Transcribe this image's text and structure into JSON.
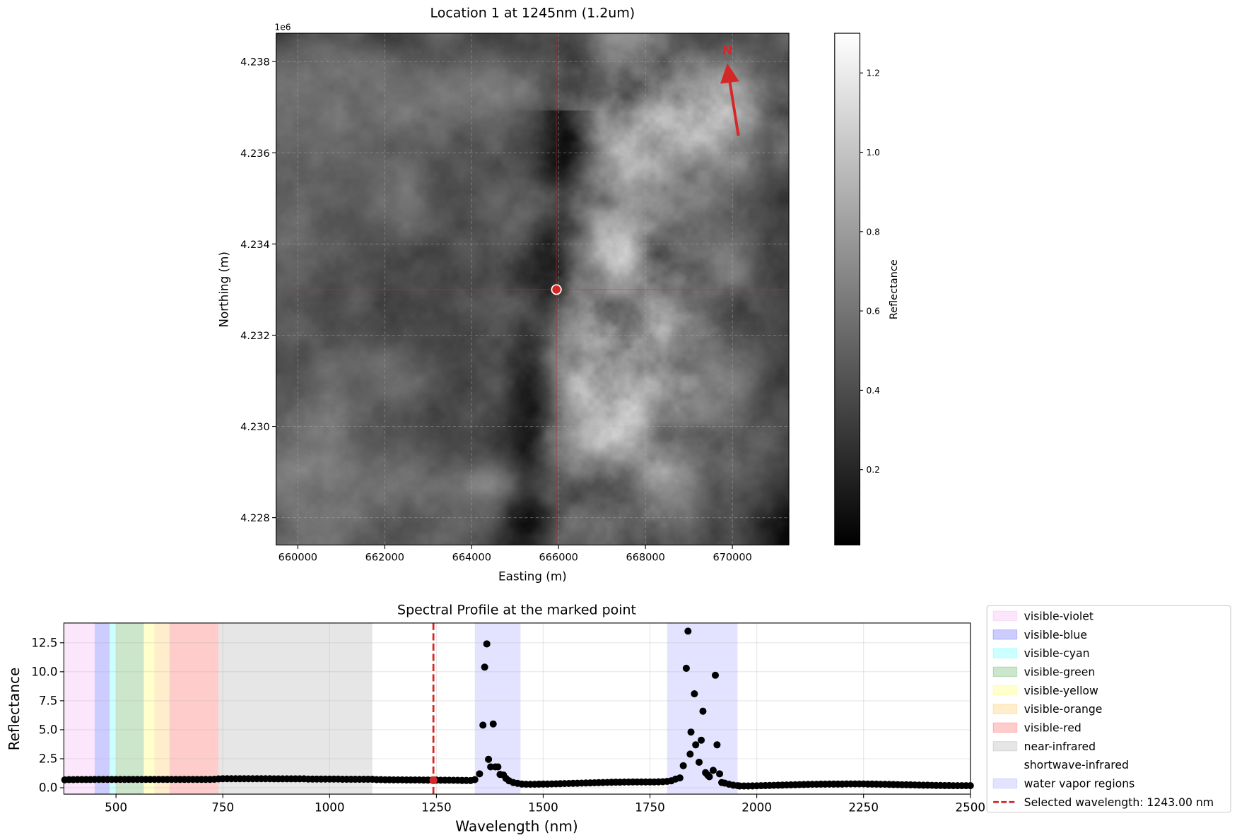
{
  "chart_data": [
    {
      "type": "heatmap",
      "title": "Location 1 at 1245nm (1.2um)",
      "xlabel": "Easting (m)",
      "ylabel": "Northing (m)",
      "y_offset_label": "1e6",
      "xlim": [
        659500,
        671300
      ],
      "ylim": [
        4227400,
        4238620
      ],
      "xticks": [
        660000,
        662000,
        664000,
        666000,
        668000,
        670000
      ],
      "xtick_labels": [
        "660000",
        "662000",
        "664000",
        "666000",
        "668000",
        "670000"
      ],
      "yticks": [
        4228000,
        4230000,
        4232000,
        4234000,
        4236000,
        4238000
      ],
      "ytick_labels": [
        "4.228",
        "4.230",
        "4.232",
        "4.234",
        "4.236",
        "4.238"
      ],
      "grid": true,
      "colormap": "gray",
      "colorbar": {
        "label": "Reflectance",
        "range": [
          0.01,
          1.3
        ],
        "ticks": [
          0.2,
          0.4,
          0.6,
          0.8,
          1.0,
          1.2
        ],
        "tick_labels": [
          "0.2",
          "0.4",
          "0.6",
          "0.8",
          "1.0",
          "1.2"
        ]
      },
      "marked_point": {
        "easting": 665950,
        "northing": 4233000,
        "color": "#d62728"
      },
      "north_arrow": {
        "label": "N",
        "color": "#d62728"
      }
    },
    {
      "type": "scatter",
      "title": "Spectral Profile at the marked point",
      "xlabel": "Wavelength (nm)",
      "ylabel": "Reflectance",
      "xlim": [
        378,
        2500
      ],
      "ylim": [
        -0.55,
        14.2
      ],
      "xticks": [
        500,
        750,
        1000,
        1250,
        1500,
        1750,
        2000,
        2250,
        2500
      ],
      "xtick_labels": [
        "500",
        "750",
        "1000",
        "1250",
        "1500",
        "1750",
        "2000",
        "2250",
        "2500"
      ],
      "yticks": [
        0,
        2.5,
        5,
        7.5,
        10,
        12.5
      ],
      "ytick_labels": [
        "0.0",
        "2.5",
        "5.0",
        "7.5",
        "10.0",
        "12.5"
      ],
      "grid": true,
      "legend_placement": "outside-right",
      "bands": [
        {
          "name": "visible-violet",
          "range": [
            380,
            450
          ],
          "color": "#ee82ee",
          "alpha": 0.2
        },
        {
          "name": "visible-blue",
          "range": [
            450,
            485
          ],
          "color": "#0000ff",
          "alpha": 0.2
        },
        {
          "name": "visible-cyan",
          "range": [
            485,
            500
          ],
          "color": "#00ffff",
          "alpha": 0.2
        },
        {
          "name": "visible-green",
          "range": [
            500,
            565
          ],
          "color": "#008000",
          "alpha": 0.2
        },
        {
          "name": "visible-yellow",
          "range": [
            565,
            590
          ],
          "color": "#ffff00",
          "alpha": 0.2
        },
        {
          "name": "visible-orange",
          "range": [
            590,
            625
          ],
          "color": "#ffa500",
          "alpha": 0.2
        },
        {
          "name": "visible-red",
          "range": [
            625,
            740
          ],
          "color": "#ff0000",
          "alpha": 0.2
        },
        {
          "name": "near-infrared",
          "range": [
            740,
            1100
          ],
          "color": "#808080",
          "alpha": 0.2
        },
        {
          "name": "shortwave-infrared",
          "range": [
            1100,
            2500
          ],
          "color": "#ffffff",
          "alpha": 0.0
        },
        {
          "name": "water vapor regions",
          "ranges": [
            [
              1340,
              1447
            ],
            [
              1790,
              1955
            ]
          ],
          "color": "#0000ff",
          "alpha": 0.11
        }
      ],
      "selected_wavelength": {
        "label": "Selected wavelength: 1243.00 nm",
        "value": 1243,
        "reflectance": 0.65,
        "color": "#d62728"
      },
      "points": [
        [
          380,
          0.68
        ],
        [
          390,
          0.7
        ],
        [
          400,
          0.7
        ],
        [
          410,
          0.71
        ],
        [
          420,
          0.71
        ],
        [
          430,
          0.71
        ],
        [
          440,
          0.71
        ],
        [
          450,
          0.72
        ],
        [
          460,
          0.72
        ],
        [
          470,
          0.72
        ],
        [
          480,
          0.72
        ],
        [
          490,
          0.72
        ],
        [
          500,
          0.72
        ],
        [
          510,
          0.72
        ],
        [
          520,
          0.72
        ],
        [
          530,
          0.72
        ],
        [
          540,
          0.72
        ],
        [
          550,
          0.72
        ],
        [
          560,
          0.72
        ],
        [
          570,
          0.72
        ],
        [
          580,
          0.72
        ],
        [
          590,
          0.72
        ],
        [
          600,
          0.72
        ],
        [
          610,
          0.72
        ],
        [
          620,
          0.72
        ],
        [
          630,
          0.72
        ],
        [
          640,
          0.72
        ],
        [
          650,
          0.72
        ],
        [
          660,
          0.72
        ],
        [
          670,
          0.72
        ],
        [
          680,
          0.72
        ],
        [
          690,
          0.72
        ],
        [
          700,
          0.72
        ],
        [
          710,
          0.72
        ],
        [
          720,
          0.72
        ],
        [
          730,
          0.73
        ],
        [
          740,
          0.76
        ],
        [
          750,
          0.78
        ],
        [
          760,
          0.78
        ],
        [
          770,
          0.78
        ],
        [
          780,
          0.78
        ],
        [
          790,
          0.78
        ],
        [
          800,
          0.78
        ],
        [
          810,
          0.78
        ],
        [
          820,
          0.78
        ],
        [
          830,
          0.78
        ],
        [
          840,
          0.78
        ],
        [
          850,
          0.78
        ],
        [
          860,
          0.78
        ],
        [
          870,
          0.77
        ],
        [
          880,
          0.77
        ],
        [
          890,
          0.77
        ],
        [
          900,
          0.77
        ],
        [
          910,
          0.77
        ],
        [
          920,
          0.77
        ],
        [
          930,
          0.77
        ],
        [
          940,
          0.77
        ],
        [
          950,
          0.75
        ],
        [
          960,
          0.75
        ],
        [
          970,
          0.75
        ],
        [
          980,
          0.75
        ],
        [
          990,
          0.75
        ],
        [
          1000,
          0.75
        ],
        [
          1010,
          0.75
        ],
        [
          1020,
          0.75
        ],
        [
          1030,
          0.73
        ],
        [
          1040,
          0.73
        ],
        [
          1050,
          0.73
        ],
        [
          1060,
          0.73
        ],
        [
          1070,
          0.73
        ],
        [
          1080,
          0.73
        ],
        [
          1090,
          0.73
        ],
        [
          1100,
          0.73
        ],
        [
          1110,
          0.7
        ],
        [
          1120,
          0.7
        ],
        [
          1130,
          0.69
        ],
        [
          1140,
          0.69
        ],
        [
          1150,
          0.68
        ],
        [
          1160,
          0.68
        ],
        [
          1170,
          0.68
        ],
        [
          1180,
          0.67
        ],
        [
          1190,
          0.67
        ],
        [
          1200,
          0.67
        ],
        [
          1210,
          0.67
        ],
        [
          1220,
          0.66
        ],
        [
          1230,
          0.66
        ],
        [
          1240,
          0.66
        ],
        [
          1250,
          0.66
        ],
        [
          1260,
          0.65
        ],
        [
          1270,
          0.65
        ],
        [
          1280,
          0.65
        ],
        [
          1290,
          0.64
        ],
        [
          1300,
          0.64
        ],
        [
          1310,
          0.63
        ],
        [
          1320,
          0.63
        ],
        [
          1330,
          0.62
        ],
        [
          1340,
          0.7
        ],
        [
          1351,
          1.2
        ],
        [
          1359,
          5.4
        ],
        [
          1363,
          10.4
        ],
        [
          1368,
          12.4
        ],
        [
          1372,
          2.45
        ],
        [
          1377,
          1.8
        ],
        [
          1383,
          5.5
        ],
        [
          1388,
          1.8
        ],
        [
          1394,
          1.8
        ],
        [
          1399,
          1.15
        ],
        [
          1407,
          1.1
        ],
        [
          1413,
          0.8
        ],
        [
          1420,
          0.6
        ],
        [
          1430,
          0.45
        ],
        [
          1440,
          0.38
        ],
        [
          1450,
          0.32
        ],
        [
          1460,
          0.3
        ],
        [
          1470,
          0.3
        ],
        [
          1480,
          0.3
        ],
        [
          1490,
          0.31
        ],
        [
          1500,
          0.32
        ],
        [
          1510,
          0.32
        ],
        [
          1520,
          0.33
        ],
        [
          1530,
          0.34
        ],
        [
          1540,
          0.35
        ],
        [
          1550,
          0.36
        ],
        [
          1560,
          0.37
        ],
        [
          1570,
          0.38
        ],
        [
          1580,
          0.39
        ],
        [
          1590,
          0.4
        ],
        [
          1600,
          0.41
        ],
        [
          1610,
          0.42
        ],
        [
          1620,
          0.43
        ],
        [
          1630,
          0.44
        ],
        [
          1640,
          0.45
        ],
        [
          1650,
          0.46
        ],
        [
          1660,
          0.47
        ],
        [
          1670,
          0.48
        ],
        [
          1680,
          0.48
        ],
        [
          1690,
          0.49
        ],
        [
          1700,
          0.49
        ],
        [
          1710,
          0.5
        ],
        [
          1720,
          0.5
        ],
        [
          1730,
          0.5
        ],
        [
          1740,
          0.5
        ],
        [
          1750,
          0.5
        ],
        [
          1760,
          0.5
        ],
        [
          1770,
          0.51
        ],
        [
          1780,
          0.52
        ],
        [
          1790,
          0.55
        ],
        [
          1800,
          0.6
        ],
        [
          1810,
          0.75
        ],
        [
          1820,
          0.85
        ],
        [
          1828,
          1.9
        ],
        [
          1835,
          10.3
        ],
        [
          1839,
          13.5
        ],
        [
          1844,
          2.9
        ],
        [
          1846,
          4.8
        ],
        [
          1854,
          8.1
        ],
        [
          1857,
          3.7
        ],
        [
          1865,
          2.2
        ],
        [
          1870,
          4.1
        ],
        [
          1874,
          6.6
        ],
        [
          1880,
          1.3
        ],
        [
          1885,
          1.1
        ],
        [
          1889,
          0.95
        ],
        [
          1898,
          1.5
        ],
        [
          1903,
          9.7
        ],
        [
          1907,
          3.7
        ],
        [
          1913,
          1.2
        ],
        [
          1918,
          0.45
        ],
        [
          1925,
          0.4
        ],
        [
          1935,
          0.3
        ],
        [
          1945,
          0.22
        ],
        [
          1955,
          0.18
        ],
        [
          1960,
          0.15
        ],
        [
          1970,
          0.15
        ],
        [
          1980,
          0.15
        ],
        [
          1990,
          0.16
        ],
        [
          2000,
          0.17
        ],
        [
          2010,
          0.18
        ],
        [
          2020,
          0.19
        ],
        [
          2030,
          0.2
        ],
        [
          2040,
          0.21
        ],
        [
          2050,
          0.22
        ],
        [
          2060,
          0.23
        ],
        [
          2070,
          0.24
        ],
        [
          2080,
          0.25
        ],
        [
          2090,
          0.26
        ],
        [
          2100,
          0.27
        ],
        [
          2110,
          0.28
        ],
        [
          2120,
          0.29
        ],
        [
          2130,
          0.3
        ],
        [
          2140,
          0.3
        ],
        [
          2150,
          0.31
        ],
        [
          2160,
          0.31
        ],
        [
          2170,
          0.32
        ],
        [
          2180,
          0.32
        ],
        [
          2190,
          0.32
        ],
        [
          2200,
          0.32
        ],
        [
          2210,
          0.33
        ],
        [
          2220,
          0.33
        ],
        [
          2230,
          0.33
        ],
        [
          2240,
          0.33
        ],
        [
          2250,
          0.33
        ],
        [
          2260,
          0.32
        ],
        [
          2270,
          0.32
        ],
        [
          2280,
          0.31
        ],
        [
          2290,
          0.3
        ],
        [
          2300,
          0.3
        ],
        [
          2310,
          0.29
        ],
        [
          2320,
          0.28
        ],
        [
          2330,
          0.27
        ],
        [
          2340,
          0.26
        ],
        [
          2350,
          0.26
        ],
        [
          2360,
          0.25
        ],
        [
          2370,
          0.24
        ],
        [
          2380,
          0.23
        ],
        [
          2390,
          0.22
        ],
        [
          2400,
          0.22
        ],
        [
          2410,
          0.21
        ],
        [
          2420,
          0.2
        ],
        [
          2430,
          0.2
        ],
        [
          2440,
          0.19
        ],
        [
          2450,
          0.19
        ],
        [
          2460,
          0.18
        ],
        [
          2470,
          0.18
        ],
        [
          2480,
          0.18
        ],
        [
          2490,
          0.18
        ],
        [
          2500,
          0.18
        ]
      ]
    }
  ]
}
